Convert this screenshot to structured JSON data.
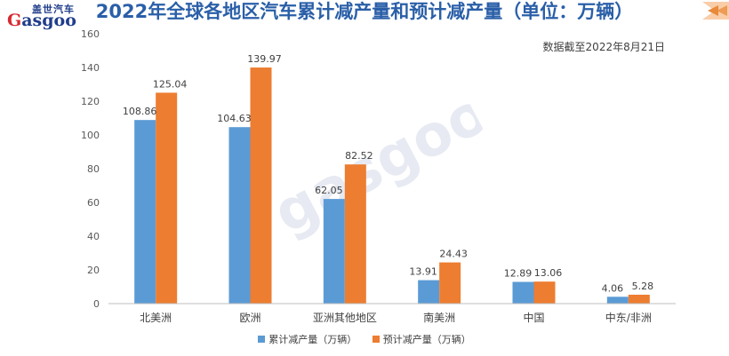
{
  "header": {
    "title": "2022年全球各地区汽车累计减产量和预计减产量（单位：万辆）",
    "logo_cn": "盖世汽车",
    "logo_en_first": "G",
    "logo_en_rest": "asgoo"
  },
  "note": "数据截至2022年8月21日",
  "colors": {
    "series1": "#5b9bd5",
    "series2": "#ed7d31",
    "title": "#2a5fa8",
    "accent_red": "#d7282f"
  },
  "chart_data": {
    "type": "bar",
    "title": "2022年全球各地区汽车累计减产量和预计减产量（单位：万辆）",
    "categories": [
      "北美洲",
      "欧洲",
      "亚洲其他地区",
      "南美洲",
      "中国",
      "中东/非洲"
    ],
    "series": [
      {
        "name": "累计减产量（万辆）",
        "values": [
          108.86,
          104.63,
          62.05,
          13.91,
          12.89,
          4.06
        ]
      },
      {
        "name": "预计减产量（万辆）",
        "values": [
          125.04,
          139.97,
          82.52,
          24.43,
          13.06,
          5.28
        ]
      }
    ],
    "ylim": [
      0,
      160
    ],
    "yticks": [
      0,
      20,
      40,
      60,
      80,
      100,
      120,
      140,
      160
    ],
    "grid": false,
    "legend": "bottom"
  }
}
